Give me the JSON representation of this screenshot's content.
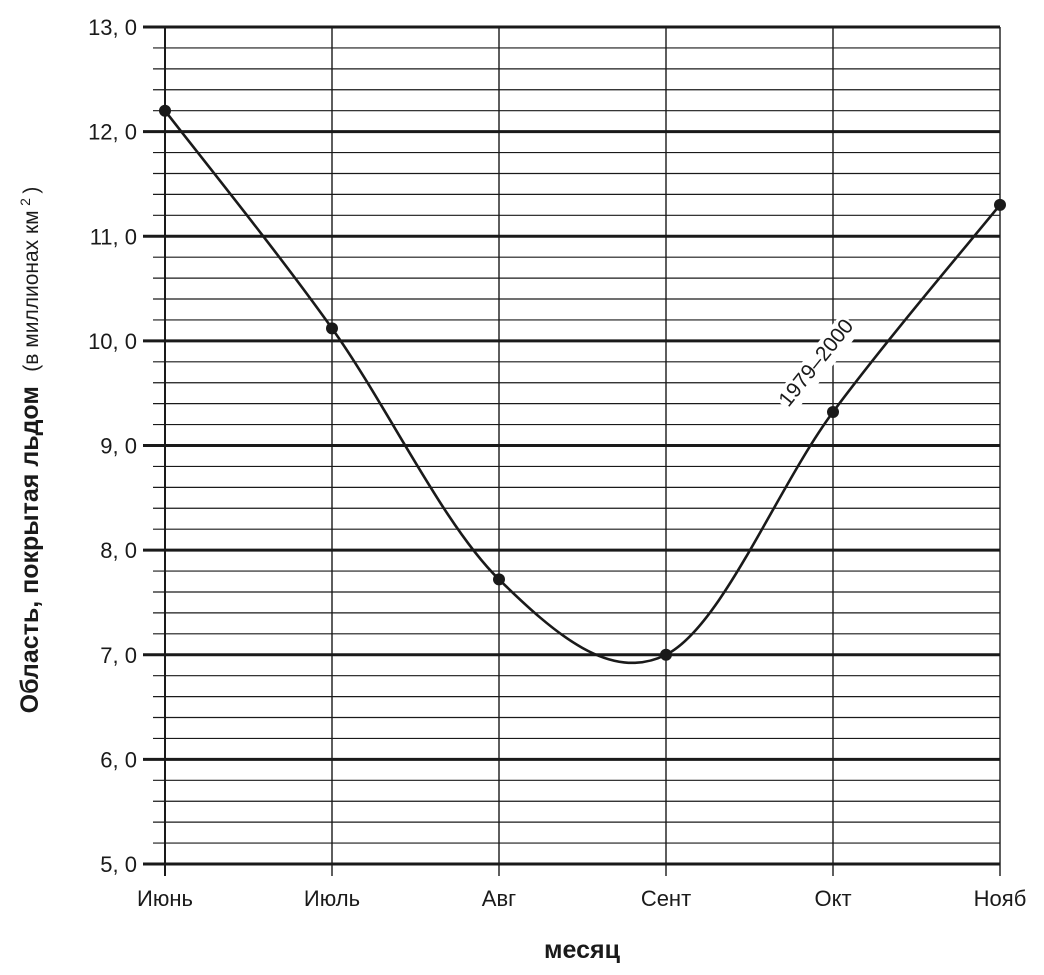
{
  "chart_data": {
    "type": "line",
    "title": "",
    "xlabel": "месяц",
    "ylabel": {
      "main": "Область, покрытая льдом",
      "unit_open": "(в миллионах км",
      "unit_sup": "2",
      "unit_close": ")"
    },
    "categories": [
      "Июнь",
      "Июль",
      "Авг",
      "Сент",
      "Окт",
      "Нояб"
    ],
    "y_tick_labels": [
      "5, 0",
      "6, 0",
      "7, 0",
      "8, 0",
      "9, 0",
      "10, 0",
      "11, 0",
      "12, 0",
      "13, 0"
    ],
    "ylim": [
      5.0,
      13.0
    ],
    "y_major_step": 1.0,
    "y_minor_step": 0.2,
    "grid": true,
    "series": [
      {
        "label": "1979–2000",
        "values": [
          12.2,
          10.12,
          7.72,
          7.0,
          9.32,
          11.3
        ]
      }
    ]
  },
  "colors": {
    "line": "#1a1a1a",
    "grid": "#1a1a1a",
    "background": "#ffffff"
  }
}
